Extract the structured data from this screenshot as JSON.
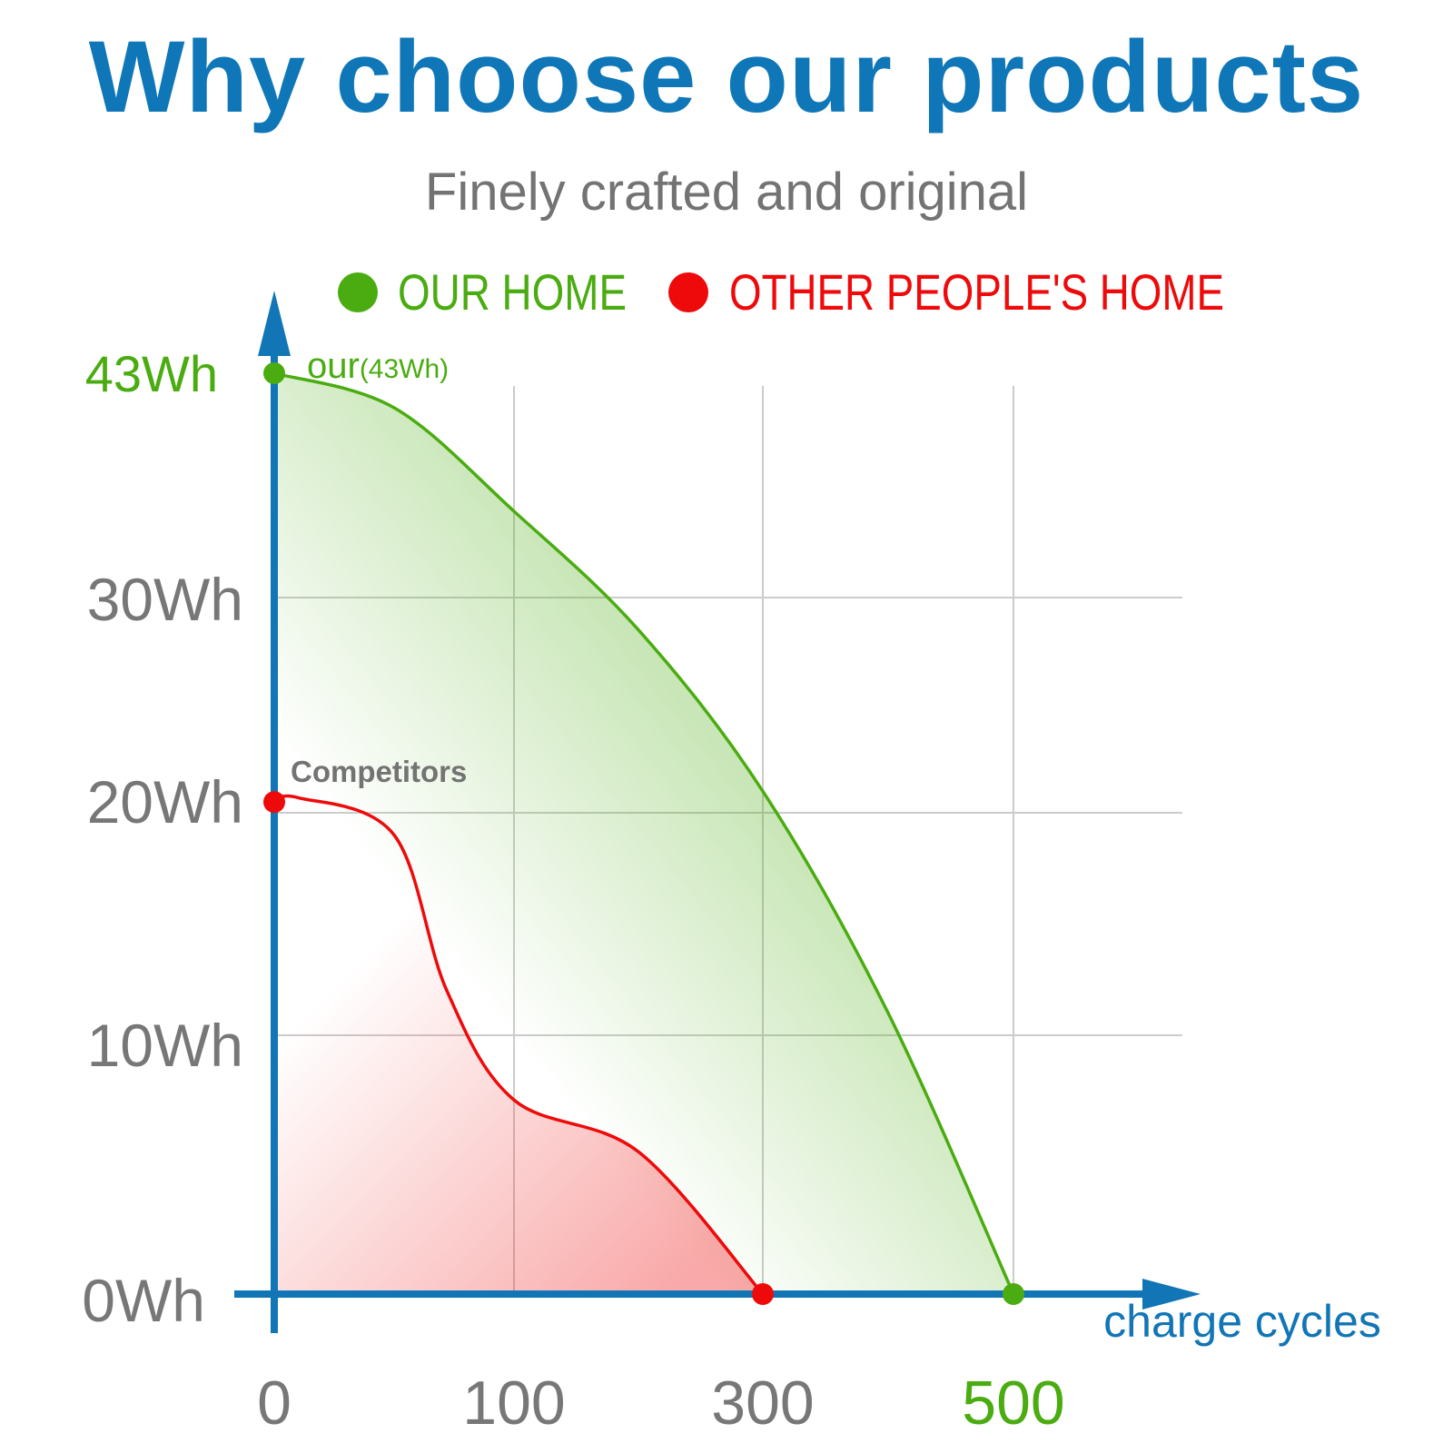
{
  "title": "Why choose our products",
  "subtitle": "Finely crafted and original",
  "colors": {
    "title": "#0f77b8",
    "subtitle": "#737373",
    "axis": "#1175b6",
    "grid": "#cccccc",
    "tick": "#777777",
    "ours": "#4aac10",
    "competitor": "#ee0a0a"
  },
  "legend": {
    "placement": "top",
    "items": [
      {
        "label": "OUR HOME",
        "color": "#4aac10"
      },
      {
        "label": "OTHER PEOPLE'S HOME",
        "color": "#ee0a0a"
      }
    ]
  },
  "chart_data": {
    "type": "area",
    "title": "Why choose our products",
    "subtitle": "Finely crafted and original",
    "xlabel": "charge cycles",
    "ylabel": "",
    "x_ticks": [
      "0",
      "100",
      "300",
      "500"
    ],
    "y_ticks": [
      "0Wh",
      "10Wh",
      "20Wh",
      "30Wh",
      "43Wh"
    ],
    "grid": true,
    "series": [
      {
        "name": "OUR HOME",
        "color": "#4aac10",
        "x_tick_index": [
          0,
          0.5,
          1,
          1.5,
          2,
          2.5,
          3
        ],
        "values_wh": [
          43,
          41,
          35,
          28.5,
          21,
          11,
          0
        ],
        "start_label": "our",
        "start_value_label": "(43Wh)",
        "start_tick": "43Wh",
        "end_tick": "500"
      },
      {
        "name": "OTHER PEOPLE'S HOME",
        "color": "#ee0a0a",
        "x_tick_index": [
          0,
          0.1,
          0.5,
          0.72,
          1,
          1.5,
          2
        ],
        "values_wh": [
          20.5,
          20.7,
          19,
          12,
          7.5,
          5.5,
          0
        ],
        "annotation": "Competitors"
      }
    ]
  }
}
